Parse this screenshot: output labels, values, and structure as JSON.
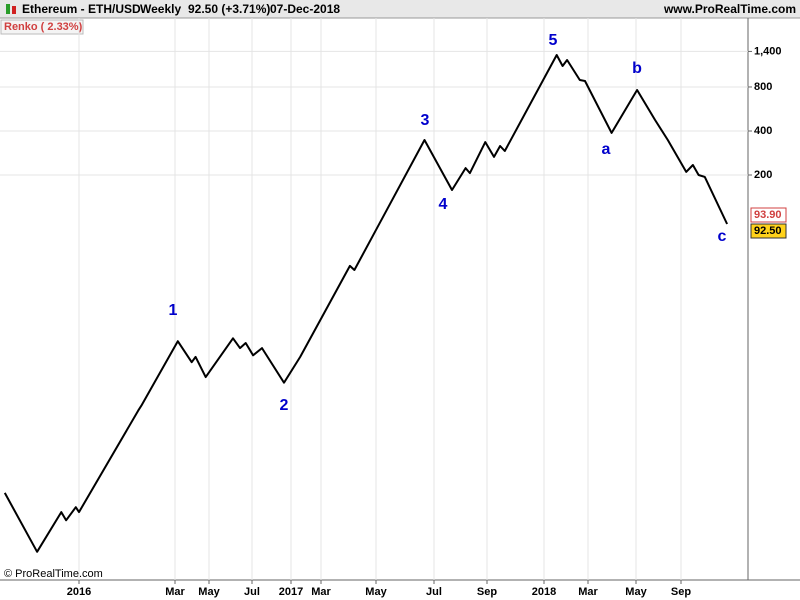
{
  "chart_data": {
    "type": "line",
    "title": "Ethereum - ETH/USD",
    "timeframe": "Weekly",
    "last_price": "92.50 (+3.71%)",
    "date": "07-Dec-2018",
    "website": "www.ProRealTime.com",
    "indicator": "Renko ( 2.33%)",
    "copyright": "© ProRealTime.com",
    "price_tags": [
      "93.90",
      "92.50"
    ],
    "annotations": [
      "1",
      "2",
      "3",
      "4",
      "5",
      "a",
      "b",
      "c"
    ],
    "color": "#000000",
    "log_scale": true,
    "grid": true,
    "x": [
      "2015-11-16",
      "2015-12-06",
      "2015-12-21",
      "2015-12-24",
      "2015-12-30",
      "2016-01-01",
      "2016-02-07",
      "2016-02-09",
      "2016-03-06",
      "2016-03-31",
      "2016-04-07",
      "2016-04-25",
      "2016-06-04",
      "2016-06-14",
      "2016-06-22",
      "2016-07-06",
      "2016-08-17",
      "2016-11-29",
      "2017-01-19",
      "2017-04-02",
      "2017-04-07",
      "2017-06-21",
      "2017-07-22",
      "2017-08-07",
      "2017-08-12",
      "2017-08-30",
      "2017-09-16",
      "2017-09-29",
      "2017-10-09",
      "2018-01-18",
      "2018-01-26",
      "2018-02-01",
      "2018-02-18",
      "2018-02-25",
      "2018-03-31",
      "2018-05-04",
      "2018-06-22",
      "2018-07-27",
      "2018-09-12",
      "2018-09-26",
      "2018-10-08",
      "2018-10-21",
      "2018-12-07"
    ],
    "values": [
      1.34,
      0.53,
      0.99,
      0.87,
      1.07,
      0.99,
      4.9,
      5.3,
      14.6,
      10.5,
      11.4,
      8.3,
      15.3,
      13.1,
      14.2,
      11.7,
      13.1,
      7.6,
      11.4,
      47.8,
      44.8,
      347,
      158,
      223,
      206,
      336,
      266,
      316,
      292,
      1324,
      1113,
      1224,
      893,
      879,
      388,
      763,
      476,
      347,
      210,
      234,
      200,
      194,
      92.5
    ],
    "xlim": [
      "2015-11-13",
      "2019-01-20"
    ],
    "xticks": [
      {
        "value": "2016-01-01",
        "label": "2016"
      },
      {
        "value": "2016-03-01",
        "label": "Mar"
      },
      {
        "value": "2016-05-01",
        "label": "May"
      },
      {
        "value": "2016-07-01",
        "label": "Jul"
      },
      {
        "value": "2017-01-01",
        "label": "2017"
      },
      {
        "value": "2017-03-01",
        "label": "Mar"
      },
      {
        "value": "2017-05-01",
        "label": "May"
      },
      {
        "value": "2017-07-01",
        "label": "Jul"
      },
      {
        "value": "2017-09-01",
        "label": "Sep"
      },
      {
        "value": "2018-01-01",
        "label": "2018"
      },
      {
        "value": "2018-03-01",
        "label": "Mar"
      },
      {
        "value": "2018-05-01",
        "label": "May"
      },
      {
        "value": "2018-09-01",
        "label": "Sep"
      }
    ],
    "ylim": [
      0.34,
      2370
    ],
    "yticks": [
      200,
      400,
      800,
      {
        "value": 1400,
        "label": "1,400"
      }
    ]
  }
}
